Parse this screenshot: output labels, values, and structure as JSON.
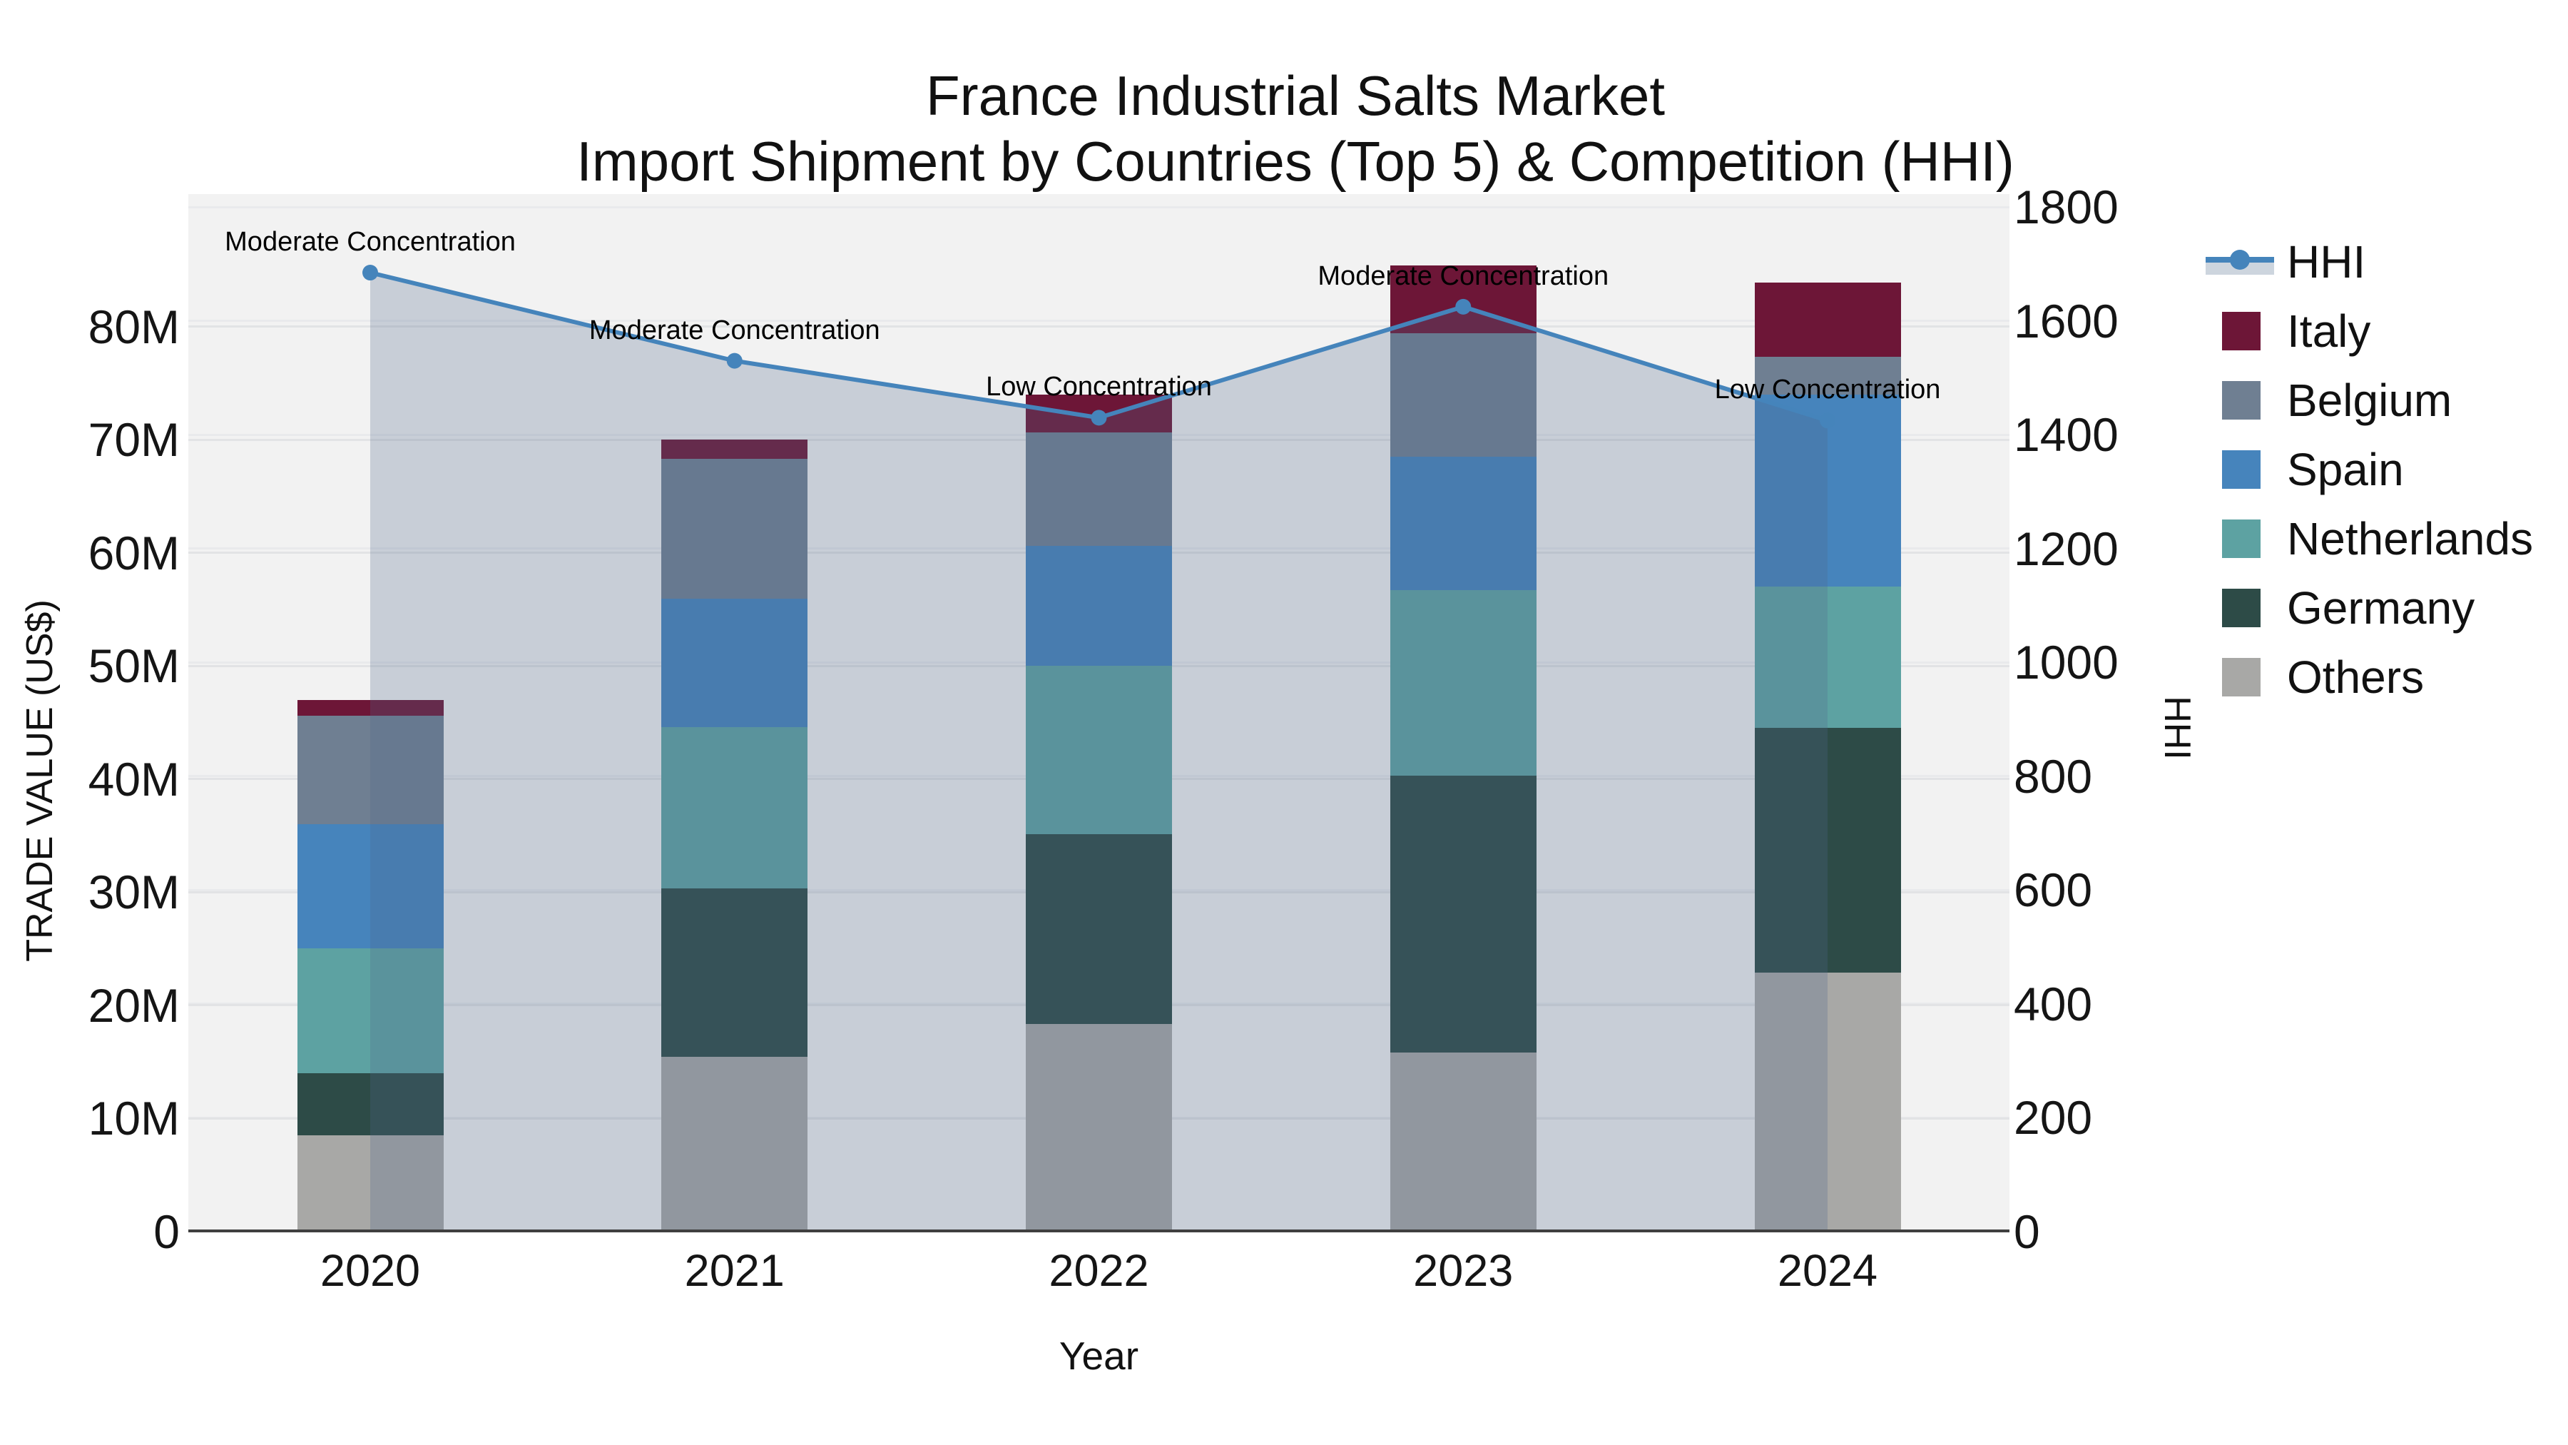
{
  "title": {
    "line1": "France Industrial Salts Market",
    "line2": "Import Shipment by Countries (Top 5) & Competition (HHI)"
  },
  "axes": {
    "x_title": "Year",
    "y_left_title": "TRADE VALUE (US$)",
    "y_right_title": "HHI",
    "y_left_ticks": [
      "0",
      "10M",
      "20M",
      "30M",
      "40M",
      "50M",
      "60M",
      "70M",
      "80M"
    ],
    "y_right_ticks": [
      "0",
      "200",
      "400",
      "600",
      "800",
      "1000",
      "1200",
      "1400",
      "1600",
      "1800"
    ]
  },
  "legend": {
    "items": [
      {
        "label": "HHI",
        "type": "line",
        "color": "#4584bb"
      },
      {
        "label": "Italy",
        "type": "swatch",
        "color": "#6d1637"
      },
      {
        "label": "Belgium",
        "type": "swatch",
        "color": "#6f7f92"
      },
      {
        "label": "Spain",
        "type": "swatch",
        "color": "#4684bc"
      },
      {
        "label": "Netherlands",
        "type": "swatch",
        "color": "#5da2a2"
      },
      {
        "label": "Germany",
        "type": "swatch",
        "color": "#2d4b47"
      },
      {
        "label": "Others",
        "type": "swatch",
        "color": "#a8a8a6"
      }
    ]
  },
  "colors": {
    "hhi_line": "#4584bb",
    "hhi_fill": "rgba(80,105,140,0.26)",
    "plot_background": "#f2f2f2",
    "axis_line": "#3f3f3f"
  },
  "chart_data": {
    "type": "bar",
    "subtype": "stacked-bars-with-line",
    "categories": [
      "2020",
      "2021",
      "2022",
      "2023",
      "2024"
    ],
    "unit": "US$ millions",
    "series": [
      {
        "name": "Others",
        "color": "#a8a8a6",
        "values": [
          8.5,
          15.4,
          18.3,
          15.8,
          22.9
        ]
      },
      {
        "name": "Germany",
        "color": "#2d4b47",
        "values": [
          5.5,
          14.9,
          16.8,
          24.5,
          21.6
        ]
      },
      {
        "name": "Netherlands",
        "color": "#5da2a2",
        "values": [
          11.0,
          14.3,
          14.9,
          16.4,
          12.5
        ]
      },
      {
        "name": "Spain",
        "color": "#4684bc",
        "values": [
          11.0,
          11.3,
          10.6,
          11.8,
          17.0
        ]
      },
      {
        "name": "Belgium",
        "color": "#6f7f92",
        "values": [
          9.6,
          12.4,
          10.0,
          10.9,
          3.3
        ]
      },
      {
        "name": "Italy",
        "color": "#6d1637",
        "values": [
          1.4,
          1.7,
          3.4,
          6.0,
          6.6
        ]
      }
    ],
    "totals": [
      47.0,
      70.0,
      74.0,
      85.4,
      83.9
    ],
    "line_series": {
      "name": "HHI",
      "values": [
        1685,
        1530,
        1430,
        1625,
        1425
      ],
      "axis": "right"
    },
    "annotations": [
      {
        "x": "2020",
        "text": "Moderate Concentration"
      },
      {
        "x": "2021",
        "text": "Moderate Concentration"
      },
      {
        "x": "2022",
        "text": "Low Concentration"
      },
      {
        "x": "2023",
        "text": "Moderate Concentration"
      },
      {
        "x": "2024",
        "text": "Low Concentration"
      }
    ],
    "ylim_left_musd": [
      0,
      91.5
    ],
    "ylim_right_hhi": [
      0,
      1822
    ],
    "grid": true,
    "legend_position": "right"
  }
}
